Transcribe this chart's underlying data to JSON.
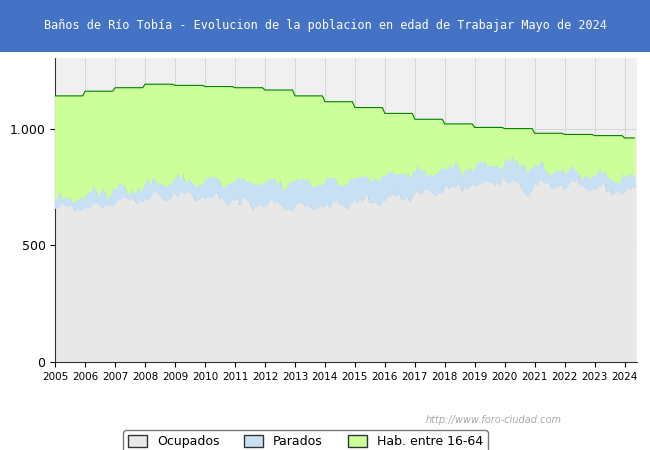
{
  "title": "Baños de Río Tobía - Evolucion de la poblacion en edad de Trabajar Mayo de 2024",
  "title_bg": "#4472C4",
  "title_color": "#FFFFFF",
  "ylim": [
    0,
    1300
  ],
  "yticks": [
    0,
    500,
    1000
  ],
  "ytick_labels": [
    "0",
    "500",
    "1.000"
  ],
  "years_range": [
    2005,
    2024
  ],
  "color_hab": "#CCFF99",
  "color_hab_line": "#008000",
  "color_parados_fill": "#C8E0F4",
  "color_parados_line": "#7BAFD4",
  "color_ocupados_fill": "#E8E8E8",
  "color_ocupados_line": "#888888",
  "legend_labels": [
    "Ocupados",
    "Parados",
    "Hab. entre 16-64"
  ],
  "watermark": "http://www.foro-ciudad.com",
  "bg_color": "#F0F0F0"
}
